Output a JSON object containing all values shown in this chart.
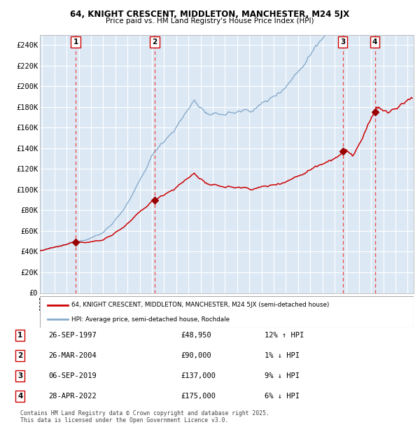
{
  "title_line1": "64, KNIGHT CRESCENT, MIDDLETON, MANCHESTER, M24 5JX",
  "title_line2": "Price paid vs. HM Land Registry's House Price Index (HPI)",
  "ylabel_ticks": [
    "£0",
    "£20K",
    "£40K",
    "£60K",
    "£80K",
    "£100K",
    "£120K",
    "£140K",
    "£160K",
    "£180K",
    "£200K",
    "£220K",
    "£240K"
  ],
  "ytick_values": [
    0,
    20000,
    40000,
    60000,
    80000,
    100000,
    120000,
    140000,
    160000,
    180000,
    200000,
    220000,
    240000
  ],
  "ylim": [
    0,
    250000
  ],
  "xlim_start": 1994.8,
  "xlim_end": 2025.5,
  "background_color": "#dce9f5",
  "grid_color": "#ffffff",
  "red_line_color": "#cc0000",
  "blue_line_color": "#88aacc",
  "marker_color": "#990000",
  "dashed_line_color": "#ee4444",
  "transaction_dates_year": [
    1997.73,
    2004.23,
    2019.68,
    2022.32
  ],
  "transaction_prices": [
    48950,
    90000,
    137000,
    175000
  ],
  "transaction_labels": [
    "1",
    "2",
    "3",
    "4"
  ],
  "legend_line1": "64, KNIGHT CRESCENT, MIDDLETON, MANCHESTER, M24 5JX (semi-detached house)",
  "legend_line2": "HPI: Average price, semi-detached house, Rochdale",
  "table_rows": [
    [
      "1",
      "26-SEP-1997",
      "£48,950",
      "12% ↑ HPI"
    ],
    [
      "2",
      "26-MAR-2004",
      "£90,000",
      "1% ↓ HPI"
    ],
    [
      "3",
      "06-SEP-2019",
      "£137,000",
      "9% ↓ HPI"
    ],
    [
      "4",
      "28-APR-2022",
      "£175,000",
      "6% ↓ HPI"
    ]
  ],
  "footnote": "Contains HM Land Registry data © Crown copyright and database right 2025.\nThis data is licensed under the Open Government Licence v3.0.",
  "x_tick_years": [
    1995,
    1996,
    1997,
    1998,
    1999,
    2000,
    2001,
    2002,
    2003,
    2004,
    2005,
    2006,
    2007,
    2008,
    2009,
    2010,
    2011,
    2012,
    2013,
    2014,
    2015,
    2016,
    2017,
    2018,
    2019,
    2020,
    2021,
    2022,
    2023,
    2024,
    2025
  ]
}
